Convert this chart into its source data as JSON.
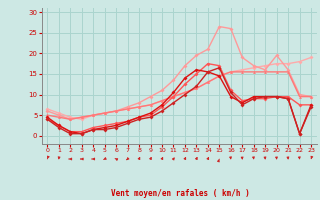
{
  "background_color": "#cde8e4",
  "grid_color": "#aad4ce",
  "xlabel": "Vent moyen/en rafales ( km/h )",
  "xlim": [
    -0.5,
    23.5
  ],
  "ylim": [
    -2,
    31
  ],
  "yticks": [
    0,
    5,
    10,
    15,
    20,
    25,
    30
  ],
  "xticks": [
    0,
    1,
    2,
    3,
    4,
    5,
    6,
    7,
    8,
    9,
    10,
    11,
    12,
    13,
    14,
    15,
    16,
    17,
    18,
    19,
    20,
    21,
    22,
    23
  ],
  "series": [
    {
      "x": [
        0,
        1,
        2,
        3,
        4,
        5,
        6,
        7,
        8,
        9,
        10,
        11,
        12,
        13,
        14,
        15,
        16,
        17,
        18,
        19,
        20,
        21,
        22,
        23
      ],
      "y": [
        6.5,
        5.5,
        4.5,
        4.0,
        5.0,
        5.5,
        6.0,
        6.5,
        7.0,
        7.5,
        8.5,
        9.5,
        10.5,
        11.5,
        13.0,
        14.5,
        15.5,
        16.0,
        16.5,
        17.0,
        17.5,
        17.5,
        18.0,
        19.0
      ],
      "color": "#ffaaaa",
      "lw": 1.0,
      "marker": "D",
      "ms": 2.0
    },
    {
      "x": [
        0,
        1,
        2,
        3,
        4,
        5,
        6,
        7,
        8,
        9,
        10,
        11,
        12,
        13,
        14,
        15,
        16,
        17,
        18,
        19,
        20,
        21,
        22,
        23
      ],
      "y": [
        6.0,
        5.0,
        4.0,
        4.5,
        5.0,
        5.5,
        6.0,
        7.0,
        8.0,
        9.5,
        11.0,
        13.5,
        17.0,
        19.5,
        21.0,
        26.5,
        26.0,
        19.0,
        17.0,
        16.0,
        19.5,
        16.0,
        10.0,
        9.5
      ],
      "color": "#ff9999",
      "lw": 1.0,
      "marker": "D",
      "ms": 2.0
    },
    {
      "x": [
        0,
        1,
        2,
        3,
        4,
        5,
        6,
        7,
        8,
        9,
        10,
        11,
        12,
        13,
        14,
        15,
        16,
        17,
        18,
        19,
        20,
        21,
        22,
        23
      ],
      "y": [
        5.0,
        4.5,
        4.0,
        4.5,
        5.0,
        5.5,
        6.0,
        6.5,
        7.0,
        7.5,
        8.5,
        9.5,
        10.5,
        11.5,
        13.0,
        14.5,
        15.5,
        15.5,
        15.5,
        15.5,
        15.5,
        15.5,
        9.5,
        9.5
      ],
      "color": "#ff7777",
      "lw": 1.0,
      "marker": "^",
      "ms": 2.0
    },
    {
      "x": [
        0,
        1,
        2,
        3,
        4,
        5,
        6,
        7,
        8,
        9,
        10,
        11,
        12,
        13,
        14,
        15,
        16,
        17,
        18,
        19,
        20,
        21,
        22,
        23
      ],
      "y": [
        4.0,
        2.5,
        1.0,
        1.0,
        2.0,
        2.5,
        3.0,
        3.5,
        4.5,
        5.0,
        7.0,
        9.5,
        12.5,
        15.0,
        17.5,
        17.0,
        11.0,
        8.5,
        9.0,
        9.0,
        9.5,
        9.5,
        7.5,
        7.5
      ],
      "color": "#ff5555",
      "lw": 1.0,
      "marker": "D",
      "ms": 2.0
    },
    {
      "x": [
        0,
        1,
        2,
        3,
        4,
        5,
        6,
        7,
        8,
        9,
        10,
        11,
        12,
        13,
        14,
        15,
        16,
        17,
        18,
        19,
        20,
        21,
        22,
        23
      ],
      "y": [
        4.5,
        2.5,
        1.0,
        0.5,
        1.5,
        2.0,
        2.5,
        3.5,
        4.5,
        5.5,
        7.5,
        10.5,
        14.0,
        16.0,
        15.5,
        14.5,
        9.5,
        8.0,
        9.5,
        9.5,
        9.5,
        9.0,
        0.5,
        7.5
      ],
      "color": "#dd1111",
      "lw": 1.0,
      "marker": "D",
      "ms": 2.0
    },
    {
      "x": [
        0,
        1,
        2,
        3,
        4,
        5,
        6,
        7,
        8,
        9,
        10,
        11,
        12,
        13,
        14,
        15,
        16,
        17,
        18,
        19,
        20,
        21,
        22,
        23
      ],
      "y": [
        4.0,
        2.0,
        0.5,
        0.5,
        1.5,
        1.5,
        2.0,
        3.0,
        4.0,
        4.5,
        6.0,
        8.0,
        10.0,
        12.0,
        15.5,
        16.5,
        10.5,
        7.5,
        9.0,
        9.5,
        9.5,
        9.0,
        0.5,
        7.0
      ],
      "color": "#cc2222",
      "lw": 1.0,
      "marker": "D",
      "ms": 2.0
    }
  ],
  "arrow_angles": [
    225,
    200,
    270,
    270,
    270,
    260,
    280,
    250,
    50,
    50,
    50,
    60,
    50,
    50,
    50,
    45,
    160,
    170,
    160,
    165,
    165,
    165,
    160,
    220
  ],
  "arrow_color": "#cc2222",
  "tick_label_color": "#cc0000",
  "xlabel_color": "#cc0000",
  "ylabel_color": "#cc0000"
}
